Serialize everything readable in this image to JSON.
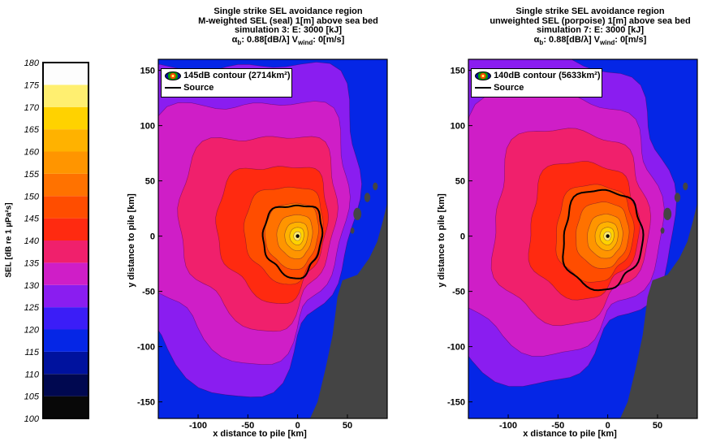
{
  "colorbar": {
    "label": "SEL [dB re 1 µPa²s]",
    "ticks": [
      "180",
      "175",
      "170",
      "165",
      "160",
      "155",
      "150",
      "145",
      "140",
      "135",
      "130",
      "125",
      "120",
      "115",
      "110",
      "105",
      "100"
    ],
    "levels": [
      {
        "from": 100,
        "to": 105,
        "color": "#080808"
      },
      {
        "from": 105,
        "to": 110,
        "color": "#000850"
      },
      {
        "from": 110,
        "to": 115,
        "color": "#00129e"
      },
      {
        "from": 115,
        "to": 120,
        "color": "#0526e6"
      },
      {
        "from": 120,
        "to": 125,
        "color": "#3b1df7"
      },
      {
        "from": 125,
        "to": 130,
        "color": "#8a1df0"
      },
      {
        "from": 130,
        "to": 135,
        "color": "#cf1ec7"
      },
      {
        "from": 135,
        "to": 140,
        "color": "#f0206c"
      },
      {
        "from": 140,
        "to": 145,
        "color": "#ff2a10"
      },
      {
        "from": 145,
        "to": 150,
        "color": "#ff4d00"
      },
      {
        "from": 150,
        "to": 155,
        "color": "#ff7200"
      },
      {
        "from": 155,
        "to": 160,
        "color": "#ff9500"
      },
      {
        "from": 160,
        "to": 165,
        "color": "#ffb200"
      },
      {
        "from": 165,
        "to": 170,
        "color": "#ffd200"
      },
      {
        "from": 170,
        "to": 175,
        "color": "#ffef70"
      },
      {
        "from": 175,
        "to": 180,
        "color": "#fdfdfd"
      }
    ]
  },
  "chart_data": [
    {
      "type": "heatmap",
      "title_lines": [
        "Single strike SEL avoidance region",
        "M-weighted SEL (seal)  1[m] above sea bed",
        "simulation 3:   E: 3000 [kJ]"
      ],
      "param_line": {
        "alpha_sym": "α",
        "alpha_sub": "b",
        "alpha_val": ": 0.88[dB/λ]  V",
        "v_sub": "wind",
        "v_val": ": 0[m/s]"
      },
      "xlabel": "x distance to pile [km]",
      "ylabel": "y distance to pile [km]",
      "xticks": [
        "-100",
        "-50",
        "0",
        "50"
      ],
      "yticks": [
        "150",
        "100",
        "50",
        "0",
        "-50",
        "-100",
        "-150"
      ],
      "xlim": [
        -140,
        90
      ],
      "ylim": [
        -165,
        160
      ],
      "legend": [
        {
          "label": "145dB contour (2714km²)"
        },
        {
          "label": "Source"
        }
      ],
      "highlight_contour_dB": 145,
      "highlight_contour_area_km2": 2714
    },
    {
      "type": "heatmap",
      "title_lines": [
        "Single strike SEL avoidance region",
        "unweighted SEL (porpoise)  1[m] above sea bed",
        "simulation 7:   E: 3000 [kJ]"
      ],
      "param_line": {
        "alpha_sym": "α",
        "alpha_sub": "b",
        "alpha_val": ": 0.88[dB/λ]  V",
        "v_sub": "wind",
        "v_val": ": 0[m/s]"
      },
      "xlabel": "x distance to pile [km]",
      "ylabel": "y distance to pile [km]",
      "xticks": [
        "-100",
        "-50",
        "0",
        "50"
      ],
      "yticks": [
        "150",
        "100",
        "50",
        "0",
        "-50",
        "-100",
        "-150"
      ],
      "xlim": [
        -140,
        90
      ],
      "ylim": [
        -165,
        160
      ],
      "legend": [
        {
          "label": "140dB contour (5633km²)"
        },
        {
          "label": "Source"
        }
      ],
      "highlight_contour_dB": 140,
      "highlight_contour_area_km2": 5633
    }
  ]
}
